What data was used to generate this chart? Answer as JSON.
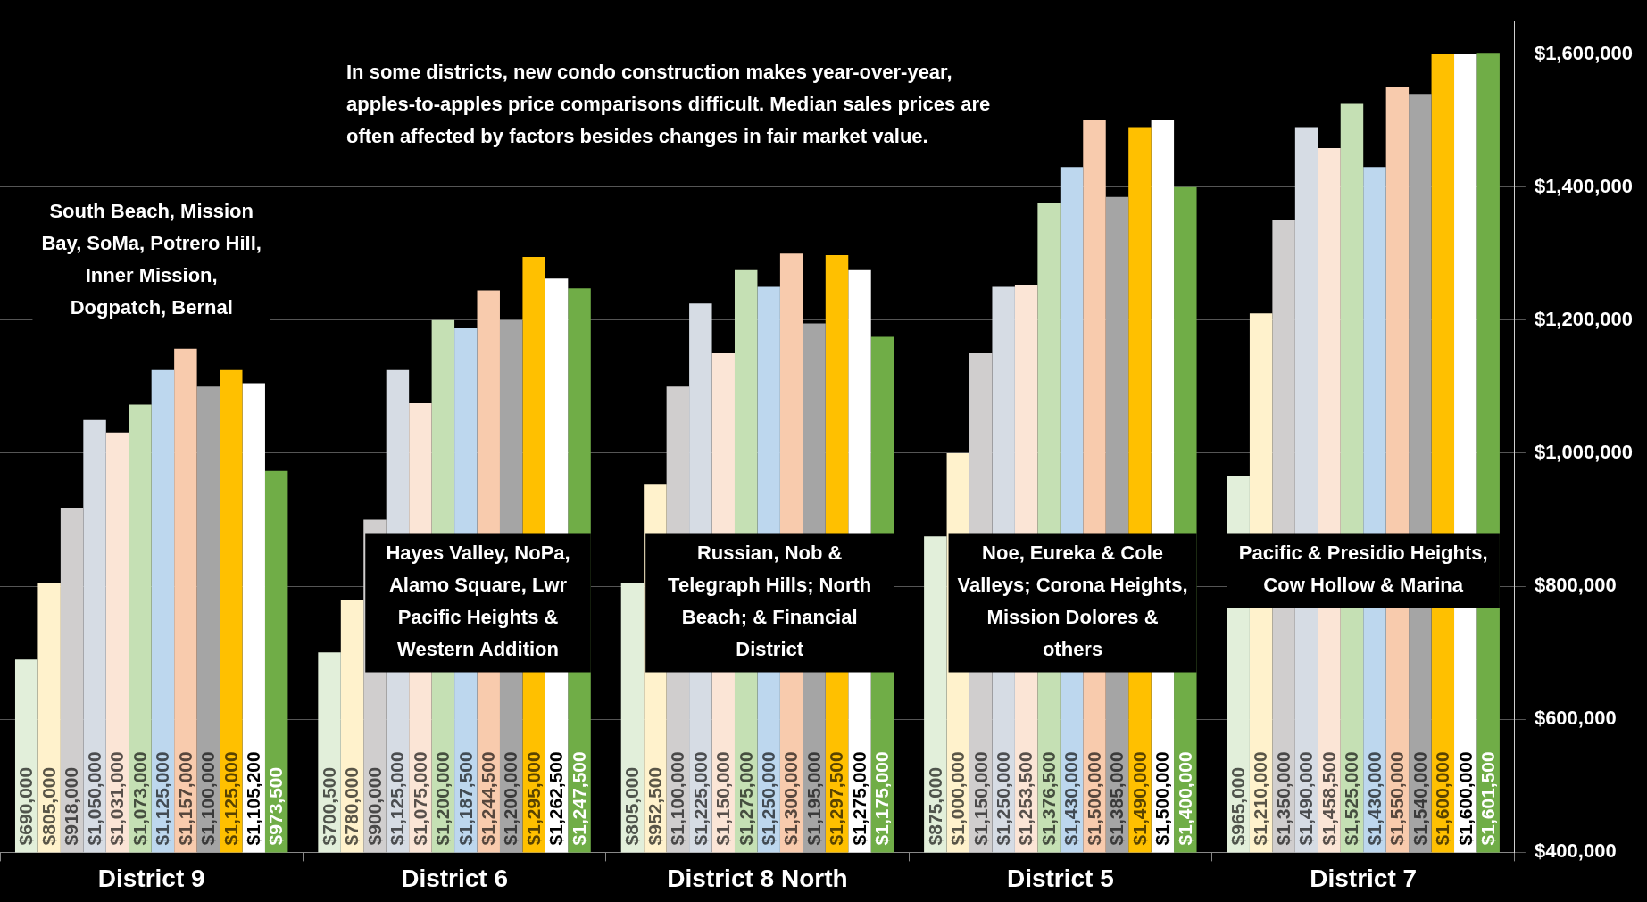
{
  "chart_data": {
    "type": "bar",
    "categories": [
      "District 9",
      "District 6",
      "District 8 North",
      "District 5",
      "District 7"
    ],
    "series": [
      {
        "color": "#e2efda",
        "values": [
          690000,
          700500,
          805000,
          875000,
          965000
        ],
        "value_labels": [
          "$690,000",
          "$700,500",
          "$805,000",
          "$875,000",
          "$965,000"
        ]
      },
      {
        "color": "#fff2cc",
        "values": [
          805000,
          780000,
          952500,
          1000000,
          1210000
        ],
        "value_labels": [
          "$805,000",
          "$780,000",
          "$952,500",
          "$1,000,000",
          "$1,210,000"
        ]
      },
      {
        "color": "#d0cece",
        "values": [
          918000,
          900000,
          1100000,
          1150000,
          1350000
        ],
        "value_labels": [
          "$918,000",
          "$900,000",
          "$1,100,000",
          "$1,150,000",
          "$1,350,000"
        ]
      },
      {
        "color": "#d6dce4",
        "values": [
          1050000,
          1125000,
          1225000,
          1250000,
          1490000
        ],
        "value_labels": [
          "$1,050,000",
          "$1,125,000",
          "$1,225,000",
          "$1,250,000",
          "$1,490,000"
        ]
      },
      {
        "color": "#fbe5d6",
        "values": [
          1031000,
          1075000,
          1150000,
          1253500,
          1458500
        ],
        "value_labels": [
          "$1,031,000",
          "$1,075,000",
          "$1,150,000",
          "$1,253,500",
          "$1,458,500"
        ]
      },
      {
        "color": "#c5e0b4",
        "values": [
          1073000,
          1200000,
          1275000,
          1376500,
          1525000
        ],
        "value_labels": [
          "$1,073,000",
          "$1,200,000",
          "$1,275,000",
          "$1,376,500",
          "$1,525,000"
        ]
      },
      {
        "color": "#bdd7ee",
        "values": [
          1125000,
          1187500,
          1250000,
          1430000,
          1430000
        ],
        "value_labels": [
          "$1,125,000",
          "$1,187,500",
          "$1,250,000",
          "$1,430,000",
          "$1,430,000"
        ]
      },
      {
        "color": "#f8cbad",
        "values": [
          1157000,
          1244500,
          1300000,
          1500000,
          1550000
        ],
        "value_labels": [
          "$1,157,000",
          "$1,244,500",
          "$1,300,000",
          "$1,500,000",
          "$1,550,000"
        ]
      },
      {
        "color": "#a5a5a5",
        "values": [
          1100000,
          1200000,
          1195000,
          1385000,
          1540000
        ],
        "value_labels": [
          "$1,100,000",
          "$1,200,000",
          "$1,195,000",
          "$1,385,000",
          "$1,540,000"
        ]
      },
      {
        "color": "#ffc000",
        "values": [
          1125000,
          1295000,
          1297500,
          1490000,
          1600000
        ],
        "value_labels": [
          "$1,125,000",
          "$1,295,000",
          "$1,297,500",
          "$1,490,000",
          "$1,600,000"
        ]
      },
      {
        "color": "#ffffff",
        "values": [
          1105200,
          1262500,
          1275000,
          1500000,
          1600000
        ],
        "value_labels": [
          "$1,105,200",
          "$1,262,500",
          "$1,275,000",
          "$1,500,000",
          "$1,600,000"
        ]
      },
      {
        "color": "#70ad47",
        "values": [
          973500,
          1247500,
          1175000,
          1400000,
          1601500
        ],
        "value_labels": [
          "$973,500",
          "$1,247,500",
          "$1,175,000",
          "$1,400,000",
          "$1,601,500"
        ]
      }
    ],
    "ylim": [
      400000,
      1650000
    ],
    "yticks": [
      {
        "value": 400000,
        "label": "$400,000"
      },
      {
        "value": 600000,
        "label": "$600,000"
      },
      {
        "value": 800000,
        "label": "$800,000"
      },
      {
        "value": 1000000,
        "label": "$1,000,000"
      },
      {
        "value": 1200000,
        "label": "$1,200,000"
      },
      {
        "value": 1400000,
        "label": "$1,400,000"
      },
      {
        "value": 1600000,
        "label": "$1,600,000"
      }
    ],
    "grid": "y",
    "legend": false,
    "annotations": [
      "In some districts, new condo construction makes year-over-year, apples-to-apples price comparisons difficult. Median sales prices are often affected by factors besides changes in fair market value.",
      "South Beach, Mission Bay, SoMa, Potrero Hill, Inner Mission, Dogpatch, Bernal",
      "Hayes Valley, NoPa, Alamo Square, Lwr Pacific Heights & Western Addition",
      "Russian, Nob & Telegraph Hills; North Beach; & Financial District",
      "Noe, Eureka & Cole Valleys; Corona Heights, Mission Dolores & others",
      "Pacific & Presidio Heights, Cow Hollow & Marina"
    ]
  }
}
